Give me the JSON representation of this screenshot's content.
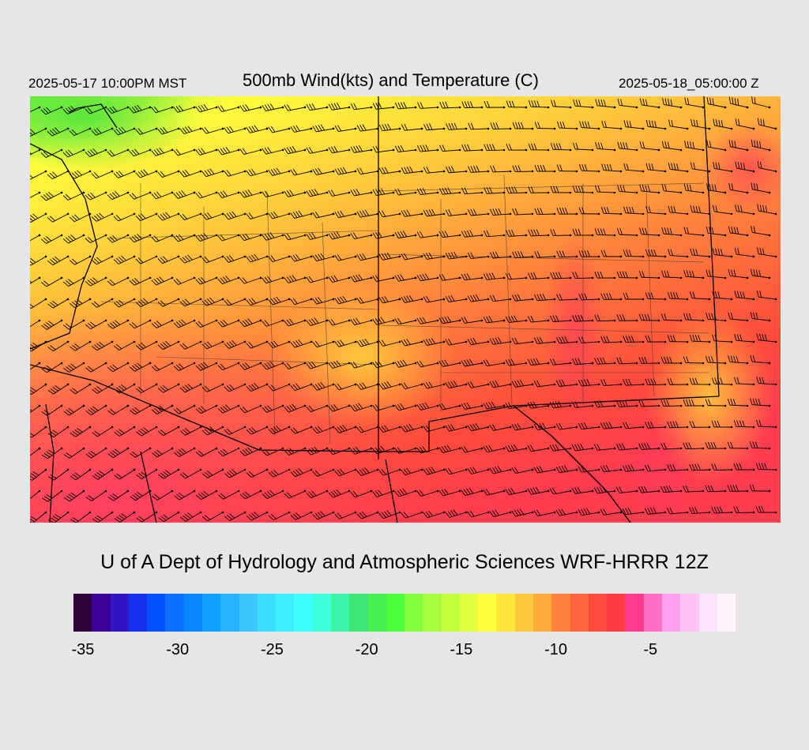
{
  "header": {
    "local_time": "2025-05-17 10:00PM MST",
    "title": "500mb Wind(kts) and Temperature (C)",
    "valid_time": "2025-05-18_05:00:00 Z"
  },
  "credit": "U of A Dept of Hydrology and Atmospheric Sciences WRF-HRRR 12Z",
  "map": {
    "field": "500mb temperature (C) with wind barbs (kts)",
    "temperature_colors": {
      "cold_north": "#66f03c",
      "yellow": "#ffff3c",
      "orange": "#ffb43c",
      "dark_orange": "#ff7d3c",
      "red": "#ff3c46",
      "hot_pink": "#ff3c78"
    },
    "barb_color": "#000000",
    "boundary_color": "#000000"
  },
  "colorbar": {
    "colors": [
      "#2d003c",
      "#3c0096",
      "#3214c8",
      "#1432f0",
      "#0050ff",
      "#0a6eff",
      "#0a87ff",
      "#14a0ff",
      "#28b4ff",
      "#3cc8ff",
      "#3cdcff",
      "#3ceeff",
      "#3cffff",
      "#3cffd7",
      "#3cf5aa",
      "#3ce678",
      "#46f050",
      "#4bff3c",
      "#82ff3c",
      "#a5ff3c",
      "#c3ff3c",
      "#e1ff3c",
      "#ffff3c",
      "#ffe63c",
      "#ffc83c",
      "#ffaa3c",
      "#ff823c",
      "#ff643c",
      "#ff4b3c",
      "#ff3c46",
      "#ff3c8c",
      "#ff6ec8",
      "#ffa0f0",
      "#ffc3f5",
      "#ffe1fa",
      "#fff5ff"
    ],
    "tick_labels": [
      "-35",
      "-30",
      "-25",
      "-20",
      "-15",
      "-10",
      "-5"
    ],
    "tick_values": [
      -35,
      -30,
      -25,
      -20,
      -15,
      -10,
      -5
    ],
    "min": -35.5,
    "max": -0.5
  }
}
